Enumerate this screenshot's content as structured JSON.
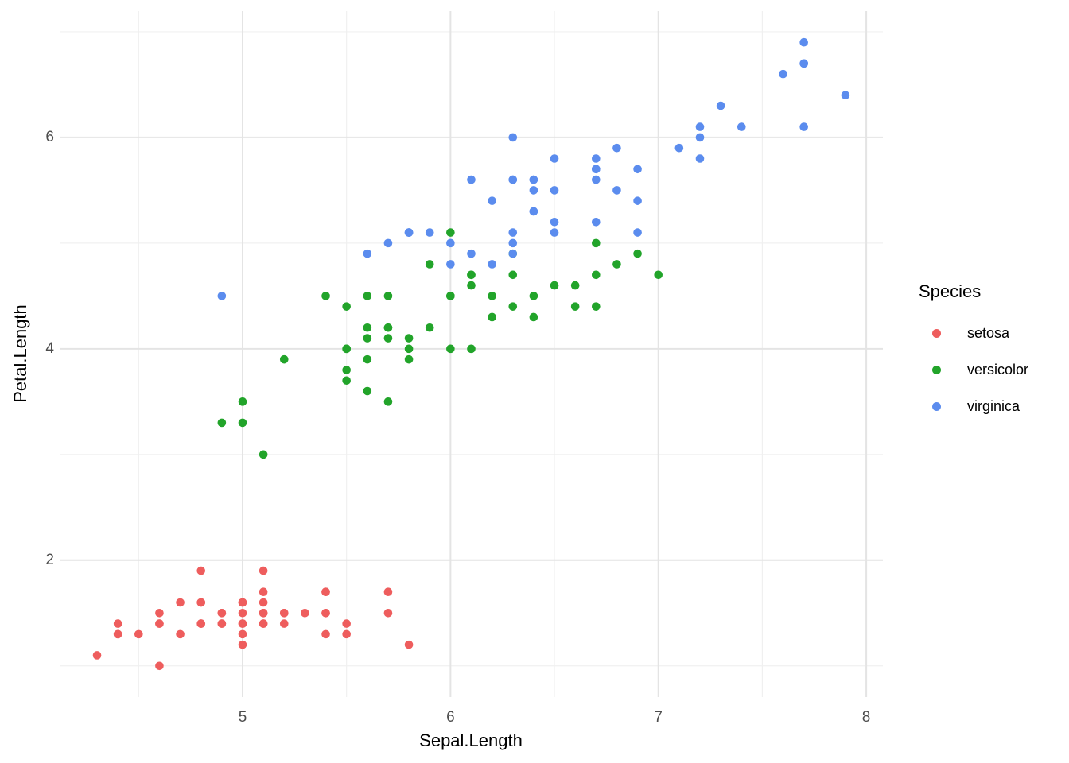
{
  "chart_data": {
    "type": "scatter",
    "title": "",
    "xlabel": "Sepal.Length",
    "ylabel": "Petal.Length",
    "xlim": [
      4.12,
      8.08
    ],
    "ylim": [
      0.705,
      7.195
    ],
    "x_major_ticks": [
      5,
      6,
      7,
      8
    ],
    "x_minor_ticks": [
      4.5,
      5.5,
      6.5,
      7.5
    ],
    "y_major_ticks": [
      2,
      4,
      6
    ],
    "y_minor_ticks": [
      1,
      3,
      5,
      7
    ],
    "grid": true,
    "point_radius": 5.3,
    "legend": {
      "title": "Species",
      "position": "right"
    },
    "series": [
      {
        "name": "setosa",
        "color": "#EE5D5D",
        "points": [
          [
            5.1,
            1.4
          ],
          [
            4.9,
            1.4
          ],
          [
            4.7,
            1.3
          ],
          [
            4.6,
            1.5
          ],
          [
            5.0,
            1.4
          ],
          [
            5.4,
            1.7
          ],
          [
            4.6,
            1.4
          ],
          [
            5.0,
            1.5
          ],
          [
            4.4,
            1.4
          ],
          [
            4.9,
            1.5
          ],
          [
            5.4,
            1.5
          ],
          [
            4.8,
            1.6
          ],
          [
            4.8,
            1.4
          ],
          [
            4.3,
            1.1
          ],
          [
            5.8,
            1.2
          ],
          [
            5.7,
            1.5
          ],
          [
            5.4,
            1.3
          ],
          [
            5.1,
            1.4
          ],
          [
            5.7,
            1.7
          ],
          [
            5.1,
            1.5
          ],
          [
            5.4,
            1.7
          ],
          [
            5.1,
            1.5
          ],
          [
            4.6,
            1.0
          ],
          [
            5.1,
            1.7
          ],
          [
            4.8,
            1.9
          ],
          [
            5.0,
            1.6
          ],
          [
            5.0,
            1.6
          ],
          [
            5.2,
            1.5
          ],
          [
            5.2,
            1.4
          ],
          [
            4.7,
            1.6
          ],
          [
            4.8,
            1.6
          ],
          [
            5.4,
            1.5
          ],
          [
            5.2,
            1.5
          ],
          [
            5.5,
            1.4
          ],
          [
            4.9,
            1.5
          ],
          [
            5.0,
            1.2
          ],
          [
            5.5,
            1.3
          ],
          [
            4.9,
            1.4
          ],
          [
            4.4,
            1.3
          ],
          [
            5.1,
            1.5
          ],
          [
            5.0,
            1.3
          ],
          [
            4.5,
            1.3
          ],
          [
            4.4,
            1.3
          ],
          [
            5.0,
            1.6
          ],
          [
            5.1,
            1.9
          ],
          [
            4.8,
            1.4
          ],
          [
            5.1,
            1.6
          ],
          [
            4.6,
            1.4
          ],
          [
            5.3,
            1.5
          ],
          [
            5.0,
            1.4
          ]
        ]
      },
      {
        "name": "versicolor",
        "color": "#22A42A",
        "points": [
          [
            7.0,
            4.7
          ],
          [
            6.4,
            4.5
          ],
          [
            6.9,
            4.9
          ],
          [
            5.5,
            4.0
          ],
          [
            6.5,
            4.6
          ],
          [
            5.7,
            4.5
          ],
          [
            6.3,
            4.7
          ],
          [
            4.9,
            3.3
          ],
          [
            6.6,
            4.6
          ],
          [
            5.2,
            3.9
          ],
          [
            5.0,
            3.5
          ],
          [
            5.9,
            4.2
          ],
          [
            6.0,
            4.0
          ],
          [
            6.1,
            4.7
          ],
          [
            5.6,
            3.6
          ],
          [
            6.7,
            4.4
          ],
          [
            5.6,
            4.5
          ],
          [
            5.8,
            4.1
          ],
          [
            6.2,
            4.5
          ],
          [
            5.6,
            3.9
          ],
          [
            5.9,
            4.8
          ],
          [
            6.1,
            4.0
          ],
          [
            6.3,
            4.9
          ],
          [
            6.1,
            4.7
          ],
          [
            6.4,
            4.3
          ],
          [
            6.6,
            4.4
          ],
          [
            6.8,
            4.8
          ],
          [
            6.7,
            5.0
          ],
          [
            6.0,
            4.5
          ],
          [
            5.7,
            3.5
          ],
          [
            5.5,
            3.8
          ],
          [
            5.5,
            3.7
          ],
          [
            5.8,
            3.9
          ],
          [
            6.0,
            5.1
          ],
          [
            5.4,
            4.5
          ],
          [
            6.0,
            4.5
          ],
          [
            6.7,
            4.7
          ],
          [
            6.3,
            4.4
          ],
          [
            5.6,
            4.1
          ],
          [
            5.5,
            4.0
          ],
          [
            5.5,
            4.4
          ],
          [
            6.1,
            4.6
          ],
          [
            5.8,
            4.0
          ],
          [
            5.0,
            3.3
          ],
          [
            5.6,
            4.2
          ],
          [
            5.7,
            4.2
          ],
          [
            5.7,
            4.2
          ],
          [
            6.2,
            4.3
          ],
          [
            5.1,
            3.0
          ],
          [
            5.7,
            4.1
          ]
        ]
      },
      {
        "name": "virginica",
        "color": "#5B8CEE",
        "points": [
          [
            6.3,
            6.0
          ],
          [
            5.8,
            5.1
          ],
          [
            7.1,
            5.9
          ],
          [
            6.3,
            5.6
          ],
          [
            6.5,
            5.8
          ],
          [
            7.6,
            6.6
          ],
          [
            4.9,
            4.5
          ],
          [
            7.3,
            6.3
          ],
          [
            6.7,
            5.8
          ],
          [
            7.2,
            6.1
          ],
          [
            6.5,
            5.1
          ],
          [
            6.4,
            5.3
          ],
          [
            6.8,
            5.5
          ],
          [
            5.7,
            5.0
          ],
          [
            5.8,
            5.1
          ],
          [
            6.4,
            5.3
          ],
          [
            6.5,
            5.5
          ],
          [
            7.7,
            6.7
          ],
          [
            7.7,
            6.9
          ],
          [
            6.0,
            5.0
          ],
          [
            6.9,
            5.7
          ],
          [
            5.6,
            4.9
          ],
          [
            7.7,
            6.7
          ],
          [
            6.3,
            4.9
          ],
          [
            6.7,
            5.7
          ],
          [
            7.2,
            6.0
          ],
          [
            6.2,
            4.8
          ],
          [
            6.1,
            4.9
          ],
          [
            6.4,
            5.6
          ],
          [
            7.2,
            5.8
          ],
          [
            7.4,
            6.1
          ],
          [
            7.9,
            6.4
          ],
          [
            6.4,
            5.6
          ],
          [
            6.3,
            5.1
          ],
          [
            6.1,
            5.6
          ],
          [
            7.7,
            6.1
          ],
          [
            6.3,
            5.6
          ],
          [
            6.4,
            5.5
          ],
          [
            6.0,
            4.8
          ],
          [
            6.9,
            5.4
          ],
          [
            6.7,
            5.6
          ],
          [
            6.9,
            5.1
          ],
          [
            5.8,
            5.1
          ],
          [
            6.8,
            5.9
          ],
          [
            6.7,
            5.7
          ],
          [
            6.7,
            5.2
          ],
          [
            6.3,
            5.0
          ],
          [
            6.5,
            5.2
          ],
          [
            6.2,
            5.4
          ],
          [
            5.9,
            5.1
          ]
        ]
      }
    ]
  },
  "colors": {
    "grid_major": "#E4E4E4",
    "grid_minor": "#F0F0F0",
    "tick_label": "#4D4D4D",
    "axis_title": "#000000",
    "background": "#FFFFFF"
  }
}
